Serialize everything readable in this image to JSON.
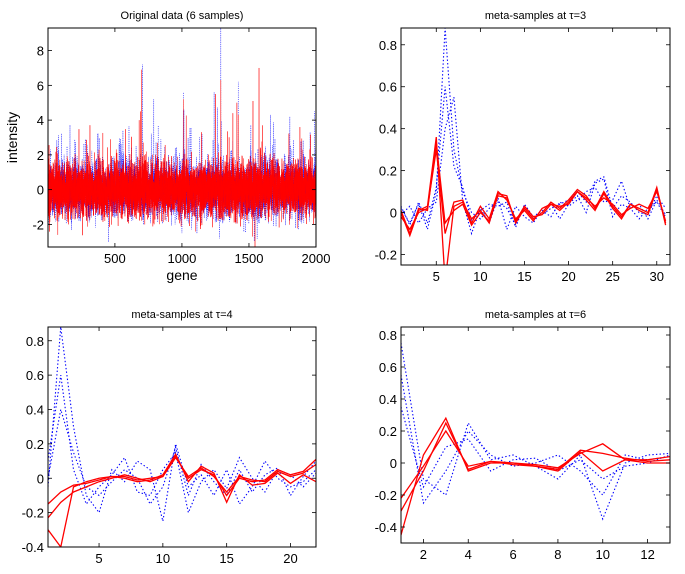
{
  "chart_data": [
    {
      "type": "line",
      "title": "Original data (6 samples)",
      "xlabel": "gene",
      "ylabel": "intensity",
      "xlim": [
        1,
        2000
      ],
      "ylim": [
        -3.3,
        9.3
      ],
      "xticks": [
        500,
        1000,
        1500,
        2000
      ],
      "yticks": [
        -2,
        0,
        2,
        4,
        6,
        8
      ],
      "grid": false,
      "n_points": 2000,
      "spikes": {
        "red": [
          [
            700,
            6.9
          ],
          [
            690,
            4.5
          ],
          [
            1010,
            5.2
          ],
          [
            1250,
            5.5
          ],
          [
            1290,
            6.3
          ],
          [
            1380,
            4.4
          ],
          [
            1410,
            5.0
          ],
          [
            1420,
            4.3
          ],
          [
            1530,
            5.1
          ],
          [
            1575,
            7.0
          ],
          [
            1600,
            3.7
          ],
          [
            1880,
            3.6
          ],
          [
            1545,
            -3.3
          ],
          [
            1525,
            -2.7
          ]
        ],
        "blue": [
          [
            560,
            3.4
          ],
          [
            705,
            7.2
          ],
          [
            790,
            5.2
          ],
          [
            1010,
            5.6
          ],
          [
            1015,
            4.6
          ],
          [
            1240,
            5.6
          ],
          [
            1290,
            9.3
          ],
          [
            1420,
            6.2
          ],
          [
            1660,
            4.3
          ],
          [
            1805,
            4.2
          ],
          [
            1280,
            -2.8
          ],
          [
            1000,
            -2.5
          ],
          [
            1990,
            4.5
          ]
        ]
      },
      "series": [
        {
          "style": "solid",
          "color": "#ff0000",
          "count": 3
        },
        {
          "style": "dotted",
          "color": "#0000ff",
          "count": 3
        }
      ]
    },
    {
      "type": "line",
      "title": "meta-samples at τ=3",
      "xlim": [
        1,
        31.5
      ],
      "ylim": [
        -0.25,
        0.88
      ],
      "xticks": [
        5,
        10,
        15,
        20,
        25,
        30
      ],
      "yticks": [
        -0.2,
        0,
        0.2,
        0.4,
        0.6,
        0.8
      ],
      "grid": false,
      "series": [
        {
          "style": "solid",
          "color": "#ff0000",
          "values": [
            0,
            -0.11,
            0.01,
            0.03,
            0.36,
            -0.33,
            0.03,
            0.05,
            -0.03,
            0.01,
            -0.05,
            0.09,
            0.08,
            -0.05,
            0.02,
            -0.03,
            0.0,
            0.05,
            0.02,
            0.06,
            0.11,
            0.08,
            0.02,
            0.1,
            0.03,
            -0.02,
            0.04,
            0.02,
            0.0,
            0.12,
            -0.06
          ]
        },
        {
          "style": "solid",
          "color": "#ff0000",
          "values": [
            -0.02,
            -0.08,
            0.0,
            0.02,
            0.3,
            -0.1,
            0.05,
            0.06,
            -0.05,
            0.03,
            -0.03,
            0.1,
            0.06,
            -0.03,
            0.01,
            -0.04,
            0.02,
            0.04,
            0.01,
            0.05,
            0.1,
            0.07,
            0.03,
            0.07,
            0.04,
            -0.01,
            0.02,
            0.04,
            0.02,
            0.1,
            -0.04
          ]
        },
        {
          "style": "solid",
          "color": "#ff0000",
          "values": [
            0.01,
            -0.1,
            0.02,
            0.01,
            0.33,
            -0.05,
            0.01,
            0.04,
            -0.06,
            0.0,
            -0.04,
            0.08,
            0.07,
            -0.04,
            0.03,
            -0.02,
            -0.01,
            0.04,
            0.03,
            0.04,
            0.1,
            0.06,
            0.01,
            0.09,
            0.02,
            -0.03,
            0.04,
            0.01,
            -0.01,
            0.11,
            -0.05
          ]
        },
        {
          "style": "dotted",
          "color": "#0000ff",
          "values": [
            0.02,
            -0.05,
            0.04,
            -0.08,
            0.1,
            0.88,
            0.3,
            0.1,
            0.0,
            -0.03,
            0.02,
            0.05,
            0.02,
            -0.06,
            0.03,
            -0.02,
            -0.01,
            0.02,
            0.04,
            0.06,
            0.1,
            0.05,
            0.15,
            0.17,
            0.02,
            0.08,
            0.05,
            0.0,
            -0.01,
            0.08,
            0.02
          ]
        },
        {
          "style": "dotted",
          "color": "#0000ff",
          "values": [
            -0.01,
            0.03,
            -0.05,
            0.02,
            0.05,
            0.4,
            0.55,
            0.05,
            -0.1,
            0.02,
            -0.05,
            0.07,
            -0.08,
            0.03,
            -0.02,
            -0.05,
            0.02,
            0.04,
            -0.03,
            0.04,
            0.08,
            0.0,
            0.14,
            0.16,
            -0.02,
            0.04,
            0.02,
            -0.03,
            0.02,
            0.05,
            -0.02
          ]
        },
        {
          "style": "dotted",
          "color": "#0000ff",
          "values": [
            0.03,
            -0.06,
            0.05,
            -0.05,
            0.12,
            0.6,
            0.22,
            0.12,
            -0.04,
            0.01,
            0.04,
            0.03,
            0.05,
            -0.07,
            0.04,
            -0.02,
            0.01,
            -0.02,
            0.05,
            0.03,
            0.06,
            0.1,
            0.12,
            0.05,
            0.06,
            0.15,
            0.02,
            0.04,
            -0.03,
            0.06,
            -0.01
          ]
        }
      ]
    },
    {
      "type": "line",
      "title": "meta-samples at τ=4",
      "xlim": [
        1,
        22
      ],
      "ylim": [
        -0.4,
        0.88
      ],
      "xticks": [
        5,
        10,
        15,
        20
      ],
      "yticks": [
        -0.4,
        -0.2,
        0,
        0.2,
        0.4,
        0.6,
        0.8
      ],
      "grid": false,
      "series": [
        {
          "style": "solid",
          "color": "#ff0000",
          "values": [
            -0.3,
            -0.4,
            -0.05,
            -0.02,
            0.0,
            0.01,
            0.0,
            -0.02,
            -0.01,
            0.02,
            0.14,
            -0.02,
            0.07,
            0.03,
            -0.14,
            0.02,
            -0.04,
            -0.03,
            0.03,
            -0.03,
            0.02,
            -0.02
          ]
        },
        {
          "style": "solid",
          "color": "#ff0000",
          "values": [
            -0.23,
            -0.14,
            -0.08,
            -0.05,
            -0.02,
            0.0,
            0.02,
            0.0,
            -0.02,
            0.01,
            0.13,
            0.0,
            0.05,
            0.02,
            -0.1,
            0.0,
            -0.02,
            -0.01,
            0.05,
            0.02,
            0.04,
            0.11
          ]
        },
        {
          "style": "solid",
          "color": "#ff0000",
          "values": [
            -0.15,
            -0.08,
            -0.04,
            -0.03,
            -0.01,
            0.01,
            0.01,
            -0.01,
            0.0,
            0.01,
            0.12,
            0.01,
            0.06,
            0.01,
            -0.08,
            0.01,
            -0.01,
            -0.02,
            0.04,
            0.01,
            0.03,
            0.08
          ]
        },
        {
          "style": "dotted",
          "color": "#0000ff",
          "values": [
            -0.05,
            0.88,
            0.3,
            -0.1,
            -0.2,
            0.05,
            -0.02,
            0.1,
            0.05,
            -0.25,
            0.2,
            -0.05,
            0.02,
            -0.1,
            0.05,
            -0.15,
            -0.05,
            0.1,
            0.0,
            -0.05,
            -0.02,
            0.05
          ]
        },
        {
          "style": "dotted",
          "color": "#0000ff",
          "values": [
            0.1,
            0.6,
            0.05,
            -0.15,
            -0.05,
            0.02,
            0.12,
            -0.08,
            -0.1,
            0.05,
            0.15,
            -0.2,
            -0.02,
            0.05,
            -0.06,
            0.12,
            0.0,
            -0.08,
            0.05,
            0.02,
            -0.05,
            0.03
          ]
        },
        {
          "style": "dotted",
          "color": "#0000ff",
          "values": [
            0.0,
            0.4,
            0.15,
            -0.05,
            -0.1,
            -0.02,
            0.05,
            0.0,
            -0.15,
            -0.05,
            0.18,
            -0.1,
            0.08,
            -0.02,
            -0.1,
            0.05,
            -0.08,
            0.02,
            0.06,
            -0.1,
            0.01,
            0.1
          ]
        }
      ]
    },
    {
      "type": "line",
      "title": "meta-samples at τ=6",
      "xlim": [
        1,
        13
      ],
      "ylim": [
        -0.5,
        0.85
      ],
      "xticks": [
        2,
        4,
        6,
        8,
        10,
        12
      ],
      "yticks": [
        -0.4,
        -0.2,
        0,
        0.2,
        0.4,
        0.6,
        0.8
      ],
      "grid": false,
      "series": [
        {
          "style": "solid",
          "color": "#ff0000",
          "values": [
            -0.45,
            0.05,
            0.28,
            -0.05,
            0.0,
            0.0,
            -0.02,
            -0.05,
            0.07,
            -0.05,
            0.02,
            0.0,
            0.0
          ]
        },
        {
          "style": "solid",
          "color": "#ff0000",
          "values": [
            -0.3,
            -0.05,
            0.25,
            -0.04,
            0.01,
            -0.01,
            -0.02,
            -0.04,
            0.08,
            0.06,
            0.03,
            0.01,
            0.02
          ]
        },
        {
          "style": "solid",
          "color": "#ff0000",
          "values": [
            -0.22,
            -0.02,
            0.2,
            -0.02,
            0.01,
            0.0,
            -0.01,
            -0.03,
            0.06,
            0.12,
            0.02,
            0.02,
            0.04
          ]
        },
        {
          "style": "dotted",
          "color": "#0000ff",
          "values": [
            0.75,
            -0.1,
            -0.2,
            0.25,
            0.02,
            0.05,
            -0.02,
            -0.1,
            0.05,
            -0.35,
            0.0,
            0.05,
            0.06
          ]
        },
        {
          "style": "dotted",
          "color": "#0000ff",
          "values": [
            0.55,
            -0.25,
            -0.05,
            0.2,
            0.05,
            -0.02,
            0.0,
            0.05,
            -0.05,
            -0.2,
            0.05,
            0.02,
            0.04
          ]
        },
        {
          "style": "dotted",
          "color": "#0000ff",
          "values": [
            0.35,
            -0.15,
            0.1,
            0.15,
            -0.05,
            0.02,
            0.03,
            -0.05,
            0.02,
            -0.1,
            -0.02,
            0.0,
            0.05
          ]
        }
      ]
    }
  ]
}
